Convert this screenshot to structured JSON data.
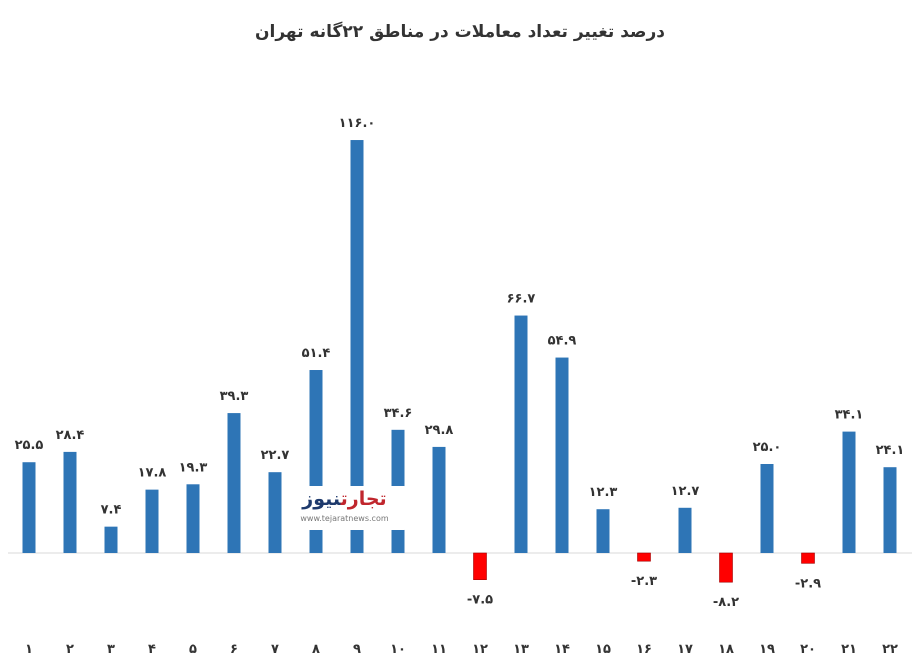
{
  "chart_data": {
    "type": "bar",
    "title": "درصد تغییر تعداد معاملات در مناطق ۲۲گانه تهران",
    "xlabel": "",
    "ylabel": "",
    "categories": [
      "۱",
      "۲",
      "۳",
      "۴",
      "۵",
      "۶",
      "۷",
      "۸",
      "۹",
      "۱۰",
      "۱۱",
      "۱۲",
      "۱۳",
      "۱۴",
      "۱۵",
      "۱۶",
      "۱۷",
      "۱۸",
      "۱۹",
      "۲۰",
      "۲۱",
      "۲۲"
    ],
    "values": [
      25.5,
      28.4,
      7.4,
      17.8,
      19.3,
      39.3,
      22.7,
      51.4,
      116.0,
      34.6,
      29.8,
      -7.5,
      66.7,
      54.9,
      12.3,
      -2.3,
      12.7,
      -8.2,
      25.0,
      -2.9,
      34.1,
      24.1
    ],
    "data_labels": [
      "۲۵.۵",
      "۲۸.۴",
      "۷.۴",
      "۱۷.۸",
      "۱۹.۳",
      "۳۹.۳",
      "۲۲.۷",
      "۵۱.۴",
      "۱۱۶.۰",
      "۳۴.۶",
      "۲۹.۸",
      "-۷.۵",
      "۶۶.۷",
      "۵۴.۹",
      "۱۲.۳",
      "-۲.۳",
      "۱۲.۷",
      "-۸.۲",
      "۲۵.۰",
      "-۲.۹",
      "۳۴.۱",
      "۲۴.۱"
    ],
    "colors": {
      "positive": "#2e75b6",
      "negative": "#ff0000"
    },
    "grid": false,
    "legend": "none"
  },
  "logo": {
    "part1": "تجارت",
    "part2": "نیوز",
    "site": "www.tejaratnews.com"
  }
}
